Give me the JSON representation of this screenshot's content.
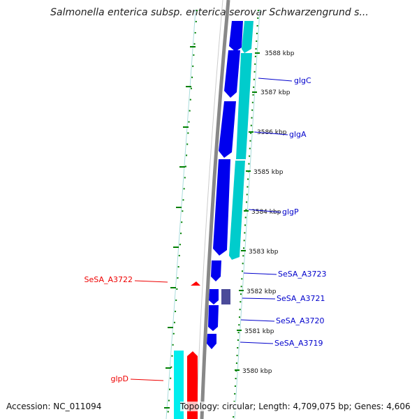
{
  "title": "Salmonella enterica subsp. enterica serovar Schwarzengrund s...",
  "footer": {
    "accession": "Accession: NC_011094",
    "stats": "Topology: circular; Length: 4,709,075 bp; Genes: 4,606"
  },
  "colors": {
    "forward_cds": "#0000ee",
    "reverse_cds": "#ff0000",
    "forward_track": "#00cccc",
    "reverse_track": "#00eeee",
    "backbone": "#888888",
    "tick": "#008000",
    "hypothetical": "#4b4b99"
  },
  "ticks": [
    "3588 kbp",
    "3587 kbp",
    "3586 kbp",
    "3585 kbp",
    "3584 kbp",
    "3583 kbp",
    "3582 kbp",
    "3581 kbp",
    "3580 kbp"
  ],
  "labels": {
    "forward": [
      "glgC",
      "glgA",
      "glgP",
      "SeSA_A3723",
      "SeSA_A3721",
      "SeSA_A3720",
      "SeSA_A3719"
    ],
    "reverse": [
      "SeSA_A3722",
      "glpD"
    ]
  }
}
